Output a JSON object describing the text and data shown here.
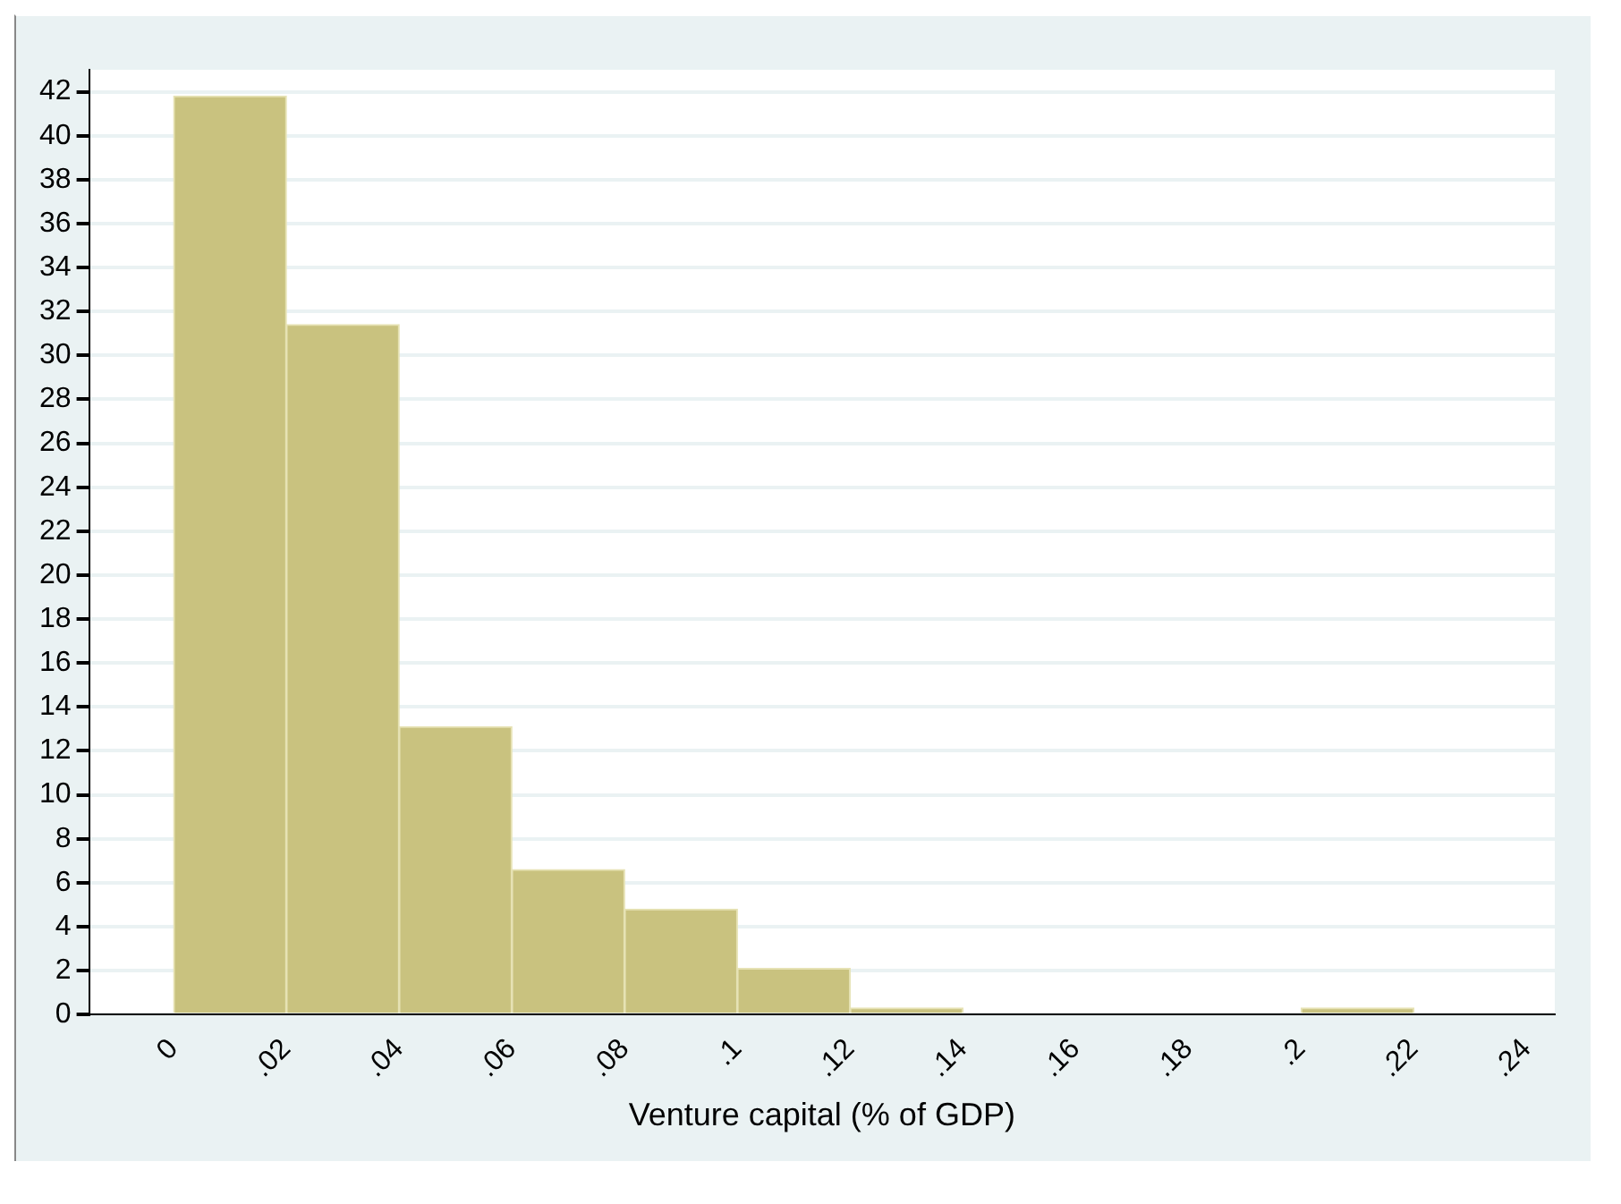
{
  "chart_data": {
    "type": "histogram",
    "xlabel": "Venture capital (% of GDP)",
    "bins": [
      0,
      0.02,
      0.04,
      0.06,
      0.08,
      0.1,
      0.12,
      0.14,
      0.16,
      0.18,
      0.2,
      0.22
    ],
    "values": [
      41.8,
      31.4,
      13.1,
      6.6,
      4.8,
      2.1,
      0.3,
      0,
      0,
      0,
      0.3
    ],
    "color": "#c9c27f",
    "xlim": [
      -0.015,
      0.245
    ],
    "xticks": [
      0,
      {
        "value": 0.02,
        "label": ".02"
      },
      {
        "value": 0.04,
        "label": ".04"
      },
      {
        "value": 0.06,
        "label": ".06"
      },
      {
        "value": 0.08,
        "label": ".08"
      },
      {
        "value": 0.1,
        "label": ".1"
      },
      {
        "value": 0.12,
        "label": ".12"
      },
      {
        "value": 0.14,
        "label": ".14"
      },
      {
        "value": 0.16,
        "label": ".16"
      },
      {
        "value": 0.18,
        "label": ".18"
      },
      {
        "value": 0.2,
        "label": ".2"
      },
      {
        "value": 0.22,
        "label": ".22"
      },
      {
        "value": 0.24,
        "label": ".24"
      }
    ],
    "ylim": [
      0,
      43
    ],
    "yticks": [
      0,
      2,
      4,
      6,
      8,
      10,
      12,
      14,
      16,
      18,
      20,
      22,
      24,
      26,
      28,
      30,
      32,
      34,
      36,
      38,
      40,
      42
    ],
    "grid": "y"
  }
}
